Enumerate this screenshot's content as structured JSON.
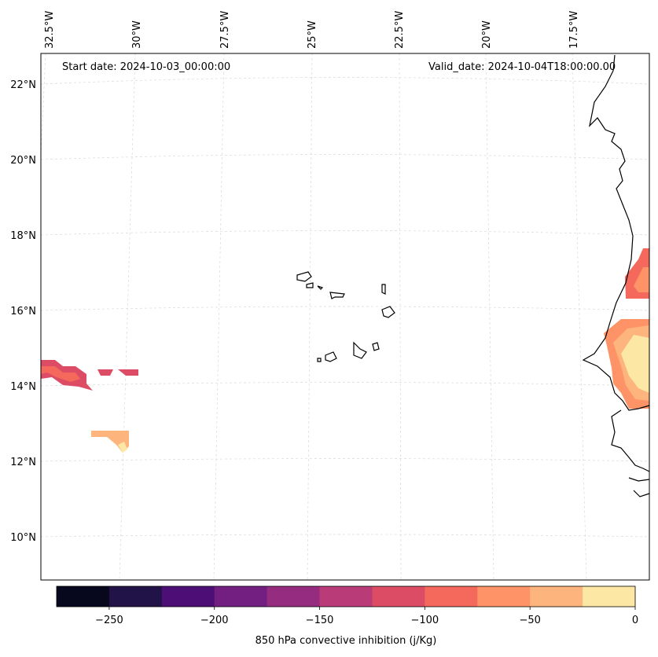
{
  "header": {
    "start_date": "Start date: 2024-10-03_00:00:00",
    "valid_date": "Valid_date: 2024-10-04T18:00:00.00"
  },
  "map": {
    "lon_labels": [
      "32.5°W",
      "30°W",
      "27.5°W",
      "25°W",
      "22.5°W",
      "20°W",
      "17.5°W"
    ],
    "lat_labels": [
      "22°N",
      "20°N",
      "18°N",
      "16°N",
      "14°N",
      "12°N",
      "10°N"
    ],
    "grid": true,
    "variable": "850 hPa convective inhibition (j/Kg)"
  },
  "colorbar": {
    "label": "850 hPa convective inhibition (j/Kg)",
    "tick_labels": [
      "−250",
      "−200",
      "−150",
      "−100",
      "−50",
      "0"
    ],
    "levels": [
      -275,
      -250,
      -225,
      -200,
      -175,
      -150,
      -125,
      -100,
      -75,
      -50,
      -25,
      0
    ],
    "colors": [
      "#07071d",
      "#211348",
      "#4d0f76",
      "#721f81",
      "#962c80",
      "#b93b77",
      "#dc4d65",
      "#f4695c",
      "#fd9366",
      "#feb57d",
      "#fde7a5"
    ]
  }
}
